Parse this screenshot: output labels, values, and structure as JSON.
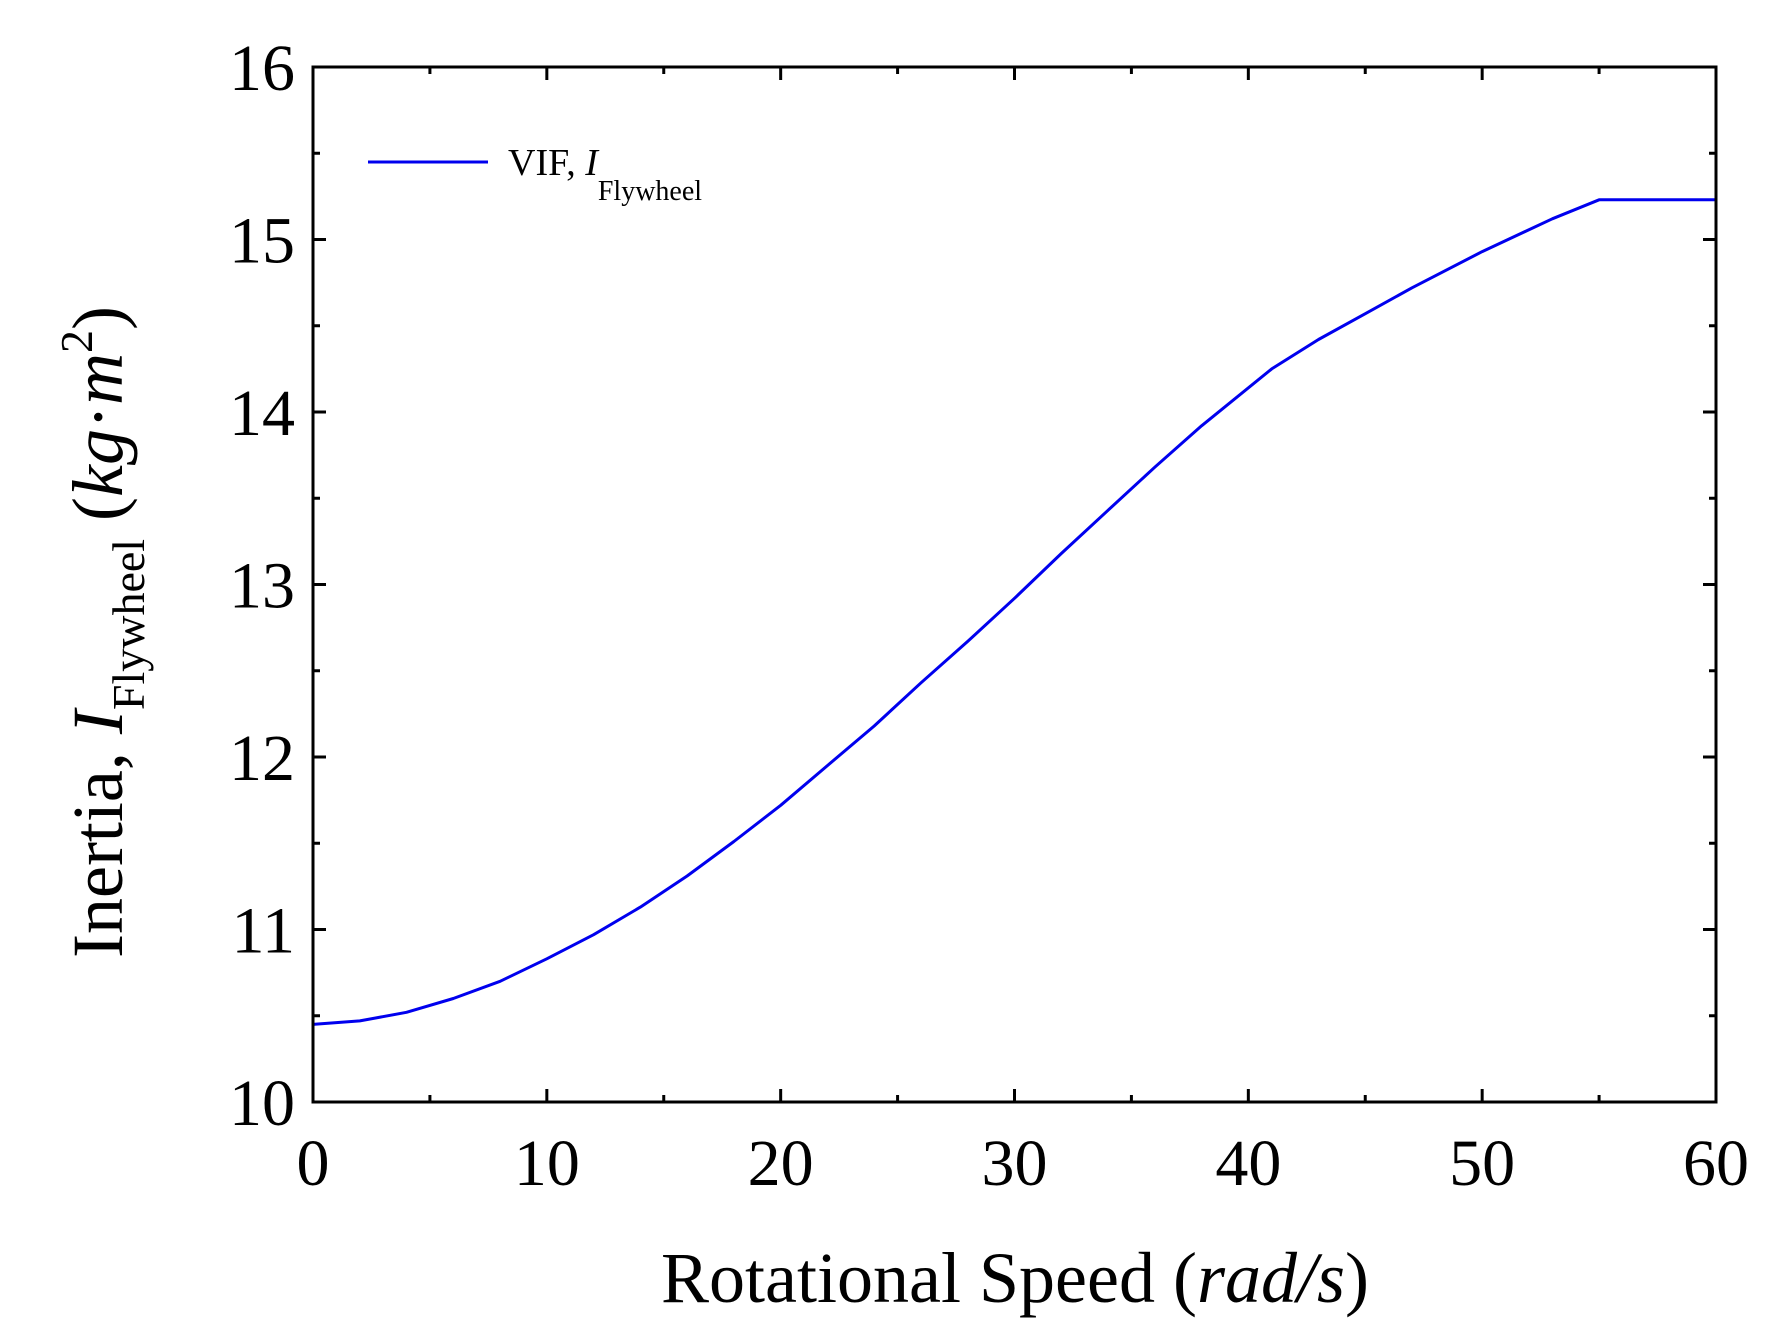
{
  "chart_data": {
    "type": "line",
    "xlabel": "Rotational Speed",
    "xlabel_unit": "rad/s",
    "ylabel": "Inertia,",
    "ylabel_symbol": "I",
    "ylabel_subscript": "Flywheel",
    "ylabel_unit_a": "kg",
    "ylabel_unit_dot": "·",
    "ylabel_unit_b": "m",
    "ylabel_unit_exp": "2",
    "xlim": [
      0,
      60
    ],
    "ylim": [
      10,
      16
    ],
    "xticks": [
      "0",
      "10",
      "20",
      "30",
      "40",
      "50",
      "60"
    ],
    "yticks": [
      "10",
      "11",
      "12",
      "13",
      "14",
      "15",
      "16"
    ],
    "legend_position": "top-left",
    "series": [
      {
        "name": "VIF, I_Flywheel",
        "legend_prefix": "VIF,",
        "legend_symbol": "I",
        "legend_subscript": "Flywheel",
        "color": "#0000EE",
        "x": [
          0,
          2,
          4,
          6,
          8,
          10,
          12,
          14,
          16,
          18,
          20,
          22,
          24,
          26,
          28,
          30,
          32,
          34,
          36,
          38,
          41,
          43,
          45,
          47,
          50,
          53,
          55,
          57,
          60
        ],
        "y": [
          10.45,
          10.47,
          10.52,
          10.6,
          10.7,
          10.83,
          10.97,
          11.13,
          11.31,
          11.51,
          11.72,
          11.95,
          12.18,
          12.43,
          12.67,
          12.92,
          13.18,
          13.43,
          13.68,
          13.92,
          14.25,
          14.42,
          14.57,
          14.72,
          14.93,
          15.12,
          15.23,
          15.23,
          15.23
        ]
      }
    ]
  }
}
